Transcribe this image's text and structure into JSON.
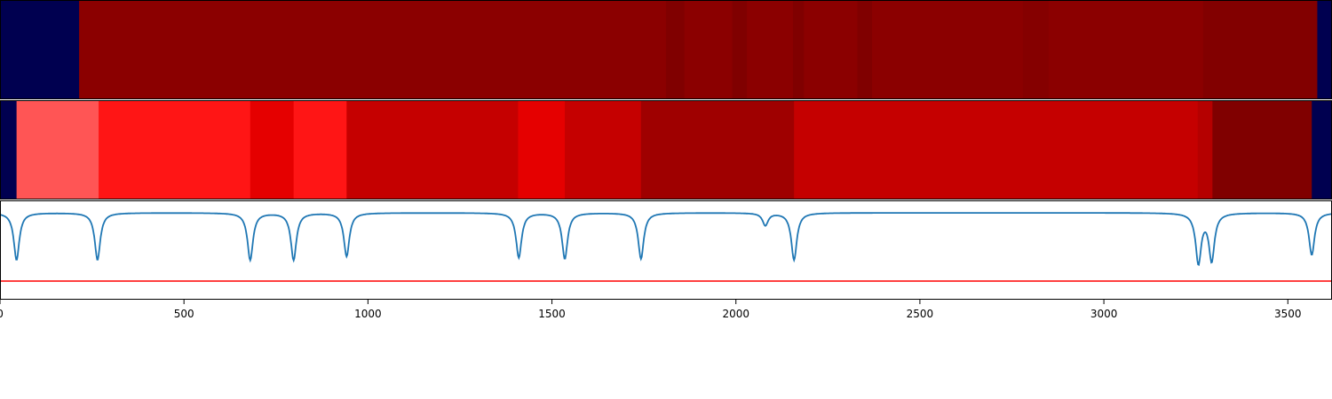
{
  "chart_data": [
    {
      "type": "heatmap",
      "x_range": [
        0,
        3620
      ],
      "segments": [
        {
          "start": 0,
          "end": 215,
          "color": "#000050"
        },
        {
          "start": 215,
          "end": 1810,
          "color": "#8b0000"
        },
        {
          "start": 1810,
          "end": 1860,
          "color": "#800000"
        },
        {
          "start": 1860,
          "end": 1990,
          "color": "#8b0000"
        },
        {
          "start": 1990,
          "end": 2030,
          "color": "#800000"
        },
        {
          "start": 2030,
          "end": 2155,
          "color": "#8b0000"
        },
        {
          "start": 2155,
          "end": 2185,
          "color": "#800000"
        },
        {
          "start": 2185,
          "end": 2330,
          "color": "#8b0000"
        },
        {
          "start": 2330,
          "end": 2370,
          "color": "#800000"
        },
        {
          "start": 2370,
          "end": 2780,
          "color": "#8b0000"
        },
        {
          "start": 2780,
          "end": 2850,
          "color": "#850000"
        },
        {
          "start": 2850,
          "end": 3270,
          "color": "#8b0000"
        },
        {
          "start": 3270,
          "end": 3580,
          "color": "#820000"
        },
        {
          "start": 3580,
          "end": 3620,
          "color": "#000050"
        }
      ]
    },
    {
      "type": "heatmap",
      "x_range": [
        0,
        3620
      ],
      "segments": [
        {
          "start": 0,
          "end": 45,
          "color": "#000050"
        },
        {
          "start": 45,
          "end": 268,
          "color": "#ff5555"
        },
        {
          "start": 268,
          "end": 680,
          "color": "#ff1515"
        },
        {
          "start": 680,
          "end": 798,
          "color": "#e50000"
        },
        {
          "start": 798,
          "end": 942,
          "color": "#ff1515"
        },
        {
          "start": 942,
          "end": 1408,
          "color": "#c50000"
        },
        {
          "start": 1408,
          "end": 1535,
          "color": "#e50000"
        },
        {
          "start": 1535,
          "end": 1742,
          "color": "#c50000"
        },
        {
          "start": 1742,
          "end": 2158,
          "color": "#9f0000"
        },
        {
          "start": 2158,
          "end": 3255,
          "color": "#c50000"
        },
        {
          "start": 3255,
          "end": 3295,
          "color": "#b50000"
        },
        {
          "start": 3295,
          "end": 3565,
          "color": "#800000"
        },
        {
          "start": 3565,
          "end": 3620,
          "color": "#000050"
        }
      ]
    },
    {
      "type": "line",
      "x_range": [
        0,
        3620
      ],
      "y_range": [
        -0.7,
        0.1
      ],
      "xticks": [
        0,
        500,
        1000,
        1500,
        2000,
        2500,
        3000,
        3500
      ],
      "xtick_labels": [
        "0",
        "500",
        "1000",
        "1500",
        "2000",
        "2500",
        "3000",
        "3500"
      ],
      "threshold": -0.55,
      "series": [
        {
          "color": "#1f77b4",
          "dips": [
            {
              "x": 45,
              "depth": 0.38
            },
            {
              "x": 265,
              "depth": 0.38
            },
            {
              "x": 680,
              "depth": 0.38
            },
            {
              "x": 798,
              "depth": 0.38
            },
            {
              "x": 942,
              "depth": 0.35
            },
            {
              "x": 1410,
              "depth": 0.36
            },
            {
              "x": 1535,
              "depth": 0.37
            },
            {
              "x": 1742,
              "depth": 0.37
            },
            {
              "x": 2080,
              "depth": 0.1
            },
            {
              "x": 2158,
              "depth": 0.38
            },
            {
              "x": 3257,
              "depth": 0.4
            },
            {
              "x": 3293,
              "depth": 0.38
            },
            {
              "x": 3565,
              "depth": 0.34
            }
          ]
        }
      ],
      "threshold_color": "#ff0000"
    }
  ]
}
